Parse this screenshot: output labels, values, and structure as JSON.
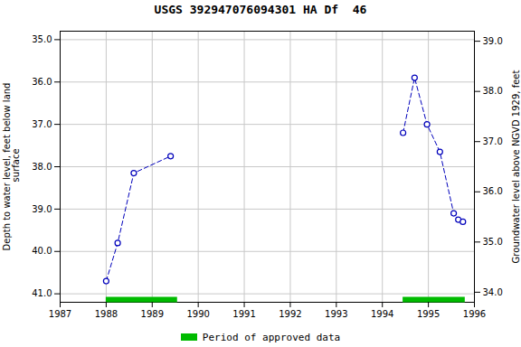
{
  "chart_data": {
    "type": "line",
    "title": "USGS 392947076094301 HA Df  46",
    "ylabel": "Depth to water level, feet below land\n surface",
    "y2label": "Groundwater level above NGVD 1929, feet",
    "xlim": [
      1987,
      1996
    ],
    "xticks": [
      1987,
      1988,
      1989,
      1990,
      1991,
      1992,
      1993,
      1994,
      1995,
      1996
    ],
    "ylim": [
      41.2,
      34.8
    ],
    "yticks": [
      {
        "value": 35.0,
        "label": "35.0"
      },
      {
        "value": 36.0,
        "label": "36.0"
      },
      {
        "value": 37.0,
        "label": "37.0"
      },
      {
        "value": 38.0,
        "label": "38.0"
      },
      {
        "value": 39.0,
        "label": "39.0"
      },
      {
        "value": 40.0,
        "label": "40.0"
      },
      {
        "value": 41.0,
        "label": "41.0"
      }
    ],
    "y2lim": [
      33.8,
      39.2
    ],
    "y2ticks": [
      {
        "value": 34.0,
        "label": "34.0"
      },
      {
        "value": 35.0,
        "label": "35.0"
      },
      {
        "value": 36.0,
        "label": "36.0"
      },
      {
        "value": 37.0,
        "label": "37.0"
      },
      {
        "value": 38.0,
        "label": "38.0"
      },
      {
        "value": 39.0,
        "label": "39.0"
      }
    ],
    "grid": true,
    "series": [
      {
        "x": [
          1988.0,
          1988.25,
          1988.6,
          1989.4
        ],
        "values": [
          40.7,
          39.8,
          38.15,
          37.75
        ],
        "color": "#0000bb",
        "marker": "circle",
        "line_style": "dashed"
      },
      {
        "x": [
          1994.45,
          1994.7,
          1994.97,
          1995.25,
          1995.55,
          1995.65,
          1995.75
        ],
        "values": [
          37.2,
          35.9,
          37.0,
          37.65,
          39.1,
          39.25,
          39.3
        ],
        "color": "#0000bb",
        "marker": "circle",
        "line_style": "dashed"
      }
    ],
    "approved_periods": {
      "name": "Period of approved data",
      "color": "#00bb00",
      "ranges": [
        [
          1988.0,
          1989.55
        ],
        [
          1994.45,
          1995.8
        ]
      ]
    },
    "legend": "bottom"
  }
}
